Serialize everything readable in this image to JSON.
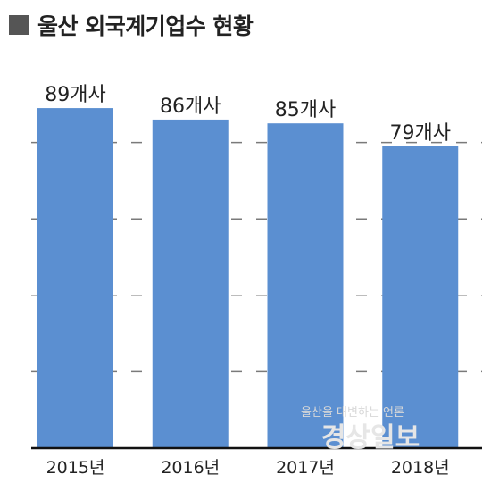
{
  "header": {
    "title": "울산 외국계기업수 현황",
    "marker_color": "#555555"
  },
  "watermark": {
    "tagline": "울산을 대변하는 언론",
    "brand": "경상일보"
  },
  "chart_data": {
    "type": "bar",
    "title": "울산 외국계기업수 현황",
    "categories": [
      "2015년",
      "2016년",
      "2017년",
      "2018년"
    ],
    "values": [
      89,
      86,
      85,
      79
    ],
    "value_labels": [
      "89개사",
      "86개사",
      "85개사",
      "79개사"
    ],
    "ylim": [
      0,
      100
    ],
    "gridlines": [
      20,
      40,
      60,
      80
    ],
    "grid": true,
    "grid_style": "dashed",
    "bar_color": "#5b8fd1",
    "legend": "none"
  }
}
